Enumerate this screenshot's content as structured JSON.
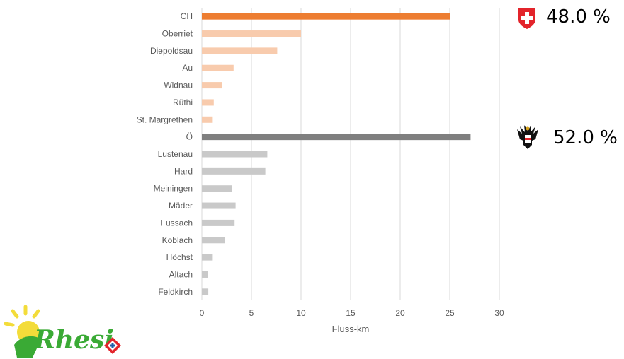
{
  "chart_data": {
    "type": "bar",
    "orientation": "horizontal",
    "categories": [
      "CH",
      "Oberriet",
      "Diepoldsau",
      "Au",
      "Widnau",
      "Rüthi",
      "St. Margrethen",
      "Ö",
      "Lustenau",
      "Hard",
      "Meiningen",
      "Mäder",
      "Fussach",
      "Koblach",
      "Höchst",
      "Altach",
      "Feldkirch"
    ],
    "values": [
      25.0,
      10.0,
      7.6,
      3.2,
      2.0,
      1.2,
      1.1,
      27.1,
      6.6,
      6.4,
      3.0,
      3.4,
      3.3,
      2.35,
      1.1,
      0.6,
      0.65
    ],
    "colors": [
      "#ed7d31",
      "#f8cbad",
      "#f8cbad",
      "#f8cbad",
      "#f8cbad",
      "#f8cbad",
      "#f8cbad",
      "#7f7f7f",
      "#c9c9c9",
      "#c9c9c9",
      "#c9c9c9",
      "#c9c9c9",
      "#c9c9c9",
      "#c9c9c9",
      "#c9c9c9",
      "#c9c9c9",
      "#c9c9c9"
    ],
    "xlabel": "Fluss-km",
    "xlim": [
      0,
      30
    ],
    "xticks": [
      0,
      5,
      10,
      15,
      20,
      25,
      30
    ],
    "grid": "vertical"
  },
  "shares": {
    "ch": {
      "text": "48.0 %",
      "icon": "swiss-flag-icon"
    },
    "at": {
      "text": "52.0 %",
      "icon": "austrian-eagle-icon"
    }
  },
  "logo": {
    "text": "Rhesi",
    "icon": "sun-logo-icon"
  },
  "colors": {
    "gridline": "#d9d9d9",
    "label": "#595959",
    "logo_green": "#3aaa35",
    "logo_yellow": "#f3dc3a"
  }
}
